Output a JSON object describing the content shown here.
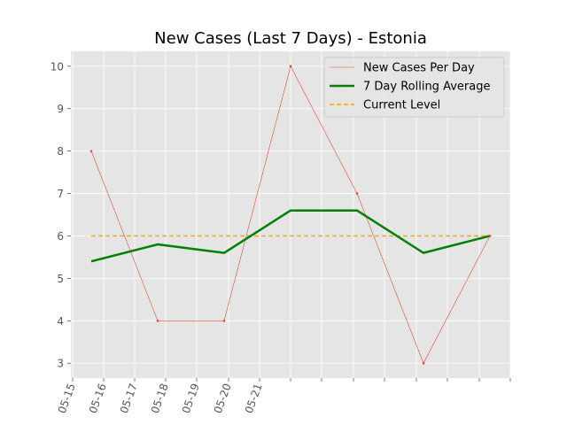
{
  "chart_data": {
    "type": "line",
    "title": "New Cases (Last 7 Days) - Estonia",
    "xlabel": "",
    "ylabel": "",
    "x": [
      "05-15",
      "05-16",
      "05-17",
      "05-18",
      "05-19",
      "05-20",
      "05-21"
    ],
    "ylim": [
      2.65,
      10.35
    ],
    "yticks": [
      3,
      4,
      5,
      6,
      7,
      8,
      9,
      10
    ],
    "grid": true,
    "legend_position": "top-right",
    "series": [
      {
        "name": "New Cases Per Day",
        "values": [
          8,
          4,
          4,
          10,
          7,
          3,
          6
        ],
        "color": "#E24A33"
      },
      {
        "name": "7 Day Rolling Average",
        "values": [
          5.4,
          5.8,
          5.6,
          6.6,
          6.6,
          5.6,
          6.0
        ],
        "color": "#008000"
      },
      {
        "name": "Current Level",
        "values": [
          6,
          6,
          6,
          6,
          6,
          6,
          6
        ],
        "color": "#FFA500"
      }
    ],
    "colors": {
      "plot_background": "#E5E5E5",
      "grid": "#FFFFFF",
      "tick_text": "#555555"
    }
  }
}
